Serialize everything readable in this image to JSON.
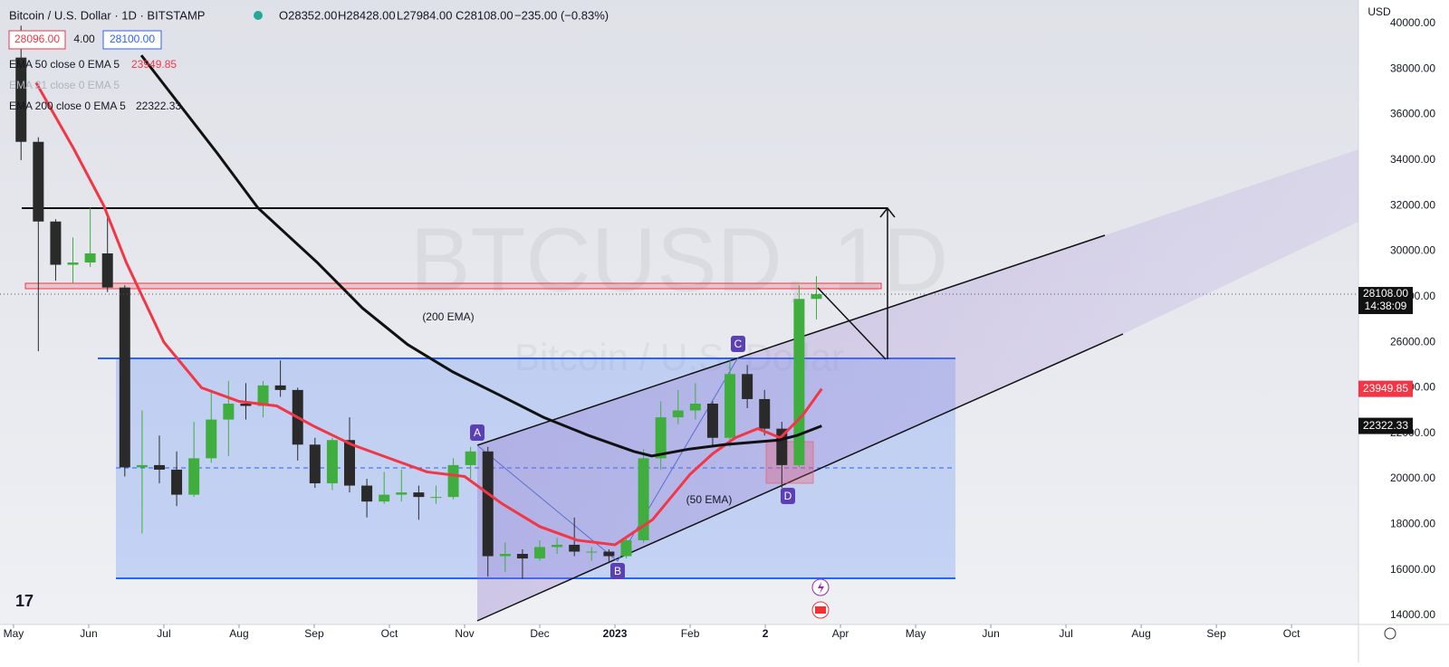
{
  "chart_data": {
    "type": "candlestick",
    "title": "Bitcoin / U.S. Dollar · 1D · BITSTAMP",
    "ohlc_header": {
      "open": "O28352.00",
      "high": "H28428.00",
      "low": "L27984.00",
      "close": "C28108.00",
      "change": "−235.00 (−0.83%)"
    },
    "bid": "28096.00",
    "spread": "4.00",
    "ask": "28100.00",
    "currency": "USD",
    "watermark": "BTCUSD, 1D",
    "watermark_subtitle": "Bitcoin / U.S. Dollar",
    "hidden_indicator": "EMA 21 close 0 EMA 5",
    "annotations": {
      "ema200": "(200 EMA)",
      "ema50": "(50 EMA)",
      "a": "A",
      "b": "B",
      "c": "C",
      "d": "D"
    },
    "last_price": {
      "value": 28108,
      "label": "28108.00"
    },
    "countdown": "14:38:09",
    "up_color": "#3fae3f",
    "down_color": "#2a2a2a",
    "x": [
      0.1,
      0.33,
      0.56,
      0.79,
      1.02,
      1.25,
      1.48,
      1.71,
      1.94,
      2.17,
      2.4,
      2.63,
      2.86,
      3.09,
      3.32,
      3.55,
      3.78,
      4.01,
      4.24,
      4.47,
      4.7,
      4.93,
      5.16,
      5.39,
      5.62,
      5.85,
      6.08,
      6.31,
      6.54,
      6.77,
      7.0,
      7.23,
      7.46,
      7.69,
      7.92,
      8.15,
      8.38,
      8.61,
      8.84,
      9.07,
      9.3,
      9.53,
      9.76,
      9.99,
      10.22,
      10.45,
      10.68
    ],
    "open": [
      38500,
      34800,
      31300,
      29400,
      29500,
      29900,
      28400,
      20500,
      20600,
      20400,
      19300,
      20900,
      22600,
      23300,
      23200,
      24100,
      23900,
      21500,
      19800,
      21700,
      19700,
      19000,
      19300,
      19400,
      19200,
      19200,
      20600,
      21200,
      16600,
      16700,
      16500,
      17000,
      17100,
      16800,
      16800,
      16600,
      17300,
      20900,
      22700,
      23000,
      23300,
      21800,
      24600,
      23500,
      22200,
      20600,
      27900
    ],
    "high": [
      39900,
      35000,
      31400,
      30600,
      31900,
      31500,
      28500,
      23000,
      21900,
      21200,
      22500,
      23900,
      24300,
      24200,
      24300,
      25200,
      24000,
      21800,
      21800,
      22700,
      20000,
      20300,
      20400,
      19700,
      19700,
      20900,
      21400,
      21400,
      17200,
      16900,
      17300,
      17400,
      18300,
      17000,
      16900,
      17400,
      21300,
      23400,
      23900,
      24200,
      23400,
      25200,
      25000,
      23900,
      22500,
      28500,
      28900
    ],
    "low": [
      34000,
      25600,
      28700,
      28600,
      29300,
      28200,
      20100,
      17600,
      19800,
      18800,
      19200,
      20700,
      21000,
      22600,
      22700,
      23600,
      20800,
      19600,
      19500,
      19400,
      18300,
      18900,
      19000,
      18200,
      18900,
      19100,
      20000,
      15700,
      15900,
      15600,
      16400,
      16700,
      16600,
      16400,
      16300,
      16500,
      17200,
      20400,
      22400,
      22600,
      21400,
      21400,
      23100,
      21900,
      19600,
      20500,
      27000
    ],
    "close": [
      34800,
      31300,
      29400,
      29500,
      29900,
      28400,
      20500,
      20600,
      20400,
      19300,
      20900,
      22600,
      23300,
      23200,
      24100,
      23900,
      21500,
      19800,
      21700,
      19700,
      19000,
      19300,
      19400,
      19200,
      19200,
      20600,
      21200,
      16600,
      16700,
      16500,
      17000,
      17100,
      16800,
      16800,
      16600,
      17300,
      20900,
      22700,
      23000,
      23300,
      21800,
      24600,
      23500,
      22200,
      20600,
      27900,
      28108
    ],
    "series": [
      {
        "name": "EMA 50 close 0 EMA 5",
        "color": "#f23645",
        "x": [
          0.3,
          0.8,
          1.2,
          1.5,
          2.0,
          2.5,
          3.0,
          3.5,
          4.0,
          4.5,
          5.0,
          5.5,
          6.0,
          6.5,
          7.0,
          7.5,
          8.0,
          8.5,
          9.0,
          9.3,
          9.6,
          9.9,
          10.2,
          10.5,
          10.75
        ],
        "values": [
          37400,
          34500,
          32000,
          29500,
          26000,
          24000,
          23400,
          23200,
          22300,
          21500,
          20900,
          20300,
          20100,
          18900,
          17900,
          17300,
          17100,
          18200,
          20200,
          21100,
          21800,
          22200,
          21800,
          22800,
          23949.85
        ]
      },
      {
        "name": "EMA 200 close 0 EMA 5",
        "color": "#111111",
        "x": [
          1.7,
          2.71,
          3.25,
          4.04,
          4.64,
          5.24,
          5.84,
          6.45,
          7.05,
          7.65,
          8.25,
          8.49,
          8.98,
          9.46,
          10.18,
          10.42,
          10.75
        ],
        "values": [
          38600,
          34300,
          31900,
          29500,
          27500,
          25900,
          24700,
          23700,
          22700,
          21900,
          21200,
          21000,
          21300,
          21500,
          21700,
          21900,
          22322.33
        ]
      }
    ],
    "xlim": [
      -0.18,
      17.89
    ],
    "xticks": [
      {
        "value": 0,
        "label": "May"
      },
      {
        "value": 1,
        "label": "Jun"
      },
      {
        "value": 2,
        "label": "Jul"
      },
      {
        "value": 3,
        "label": "Aug"
      },
      {
        "value": 4,
        "label": "Sep"
      },
      {
        "value": 5,
        "label": "Oct"
      },
      {
        "value": 6,
        "label": "Nov"
      },
      {
        "value": 7,
        "label": "Dec"
      },
      {
        "value": 8,
        "label": "2023"
      },
      {
        "value": 9,
        "label": "Feb"
      },
      {
        "value": 10,
        "label": "2"
      },
      {
        "value": 11,
        "label": "Apr"
      },
      {
        "value": 12,
        "label": "May"
      },
      {
        "value": 13,
        "label": "Jun"
      },
      {
        "value": 14,
        "label": "Jul"
      },
      {
        "value": 15,
        "label": "Aug"
      },
      {
        "value": 16,
        "label": "Sep"
      },
      {
        "value": 17,
        "label": "Oct"
      }
    ],
    "ylim": [
      13600,
      41030
    ],
    "yticks": [
      {
        "value": 14000,
        "label": "14000.00"
      },
      {
        "value": 16000,
        "label": "16000.00"
      },
      {
        "value": 18000,
        "label": "18000.00"
      },
      {
        "value": 20000,
        "label": "20000.00"
      },
      {
        "value": 22000,
        "label": "22000.00"
      },
      {
        "value": 24000,
        "label": "24000.00"
      },
      {
        "value": 26000,
        "label": "26000.00"
      },
      {
        "value": 28000,
        "label": "28000.00"
      },
      {
        "value": 30000,
        "label": "30000.00"
      },
      {
        "value": 32000,
        "label": "32000.00"
      },
      {
        "value": 34000,
        "label": "34000.00"
      },
      {
        "value": 36000,
        "label": "36000.00"
      },
      {
        "value": 38000,
        "label": "38000.00"
      },
      {
        "value": 40000,
        "label": "40000.00"
      }
    ]
  }
}
